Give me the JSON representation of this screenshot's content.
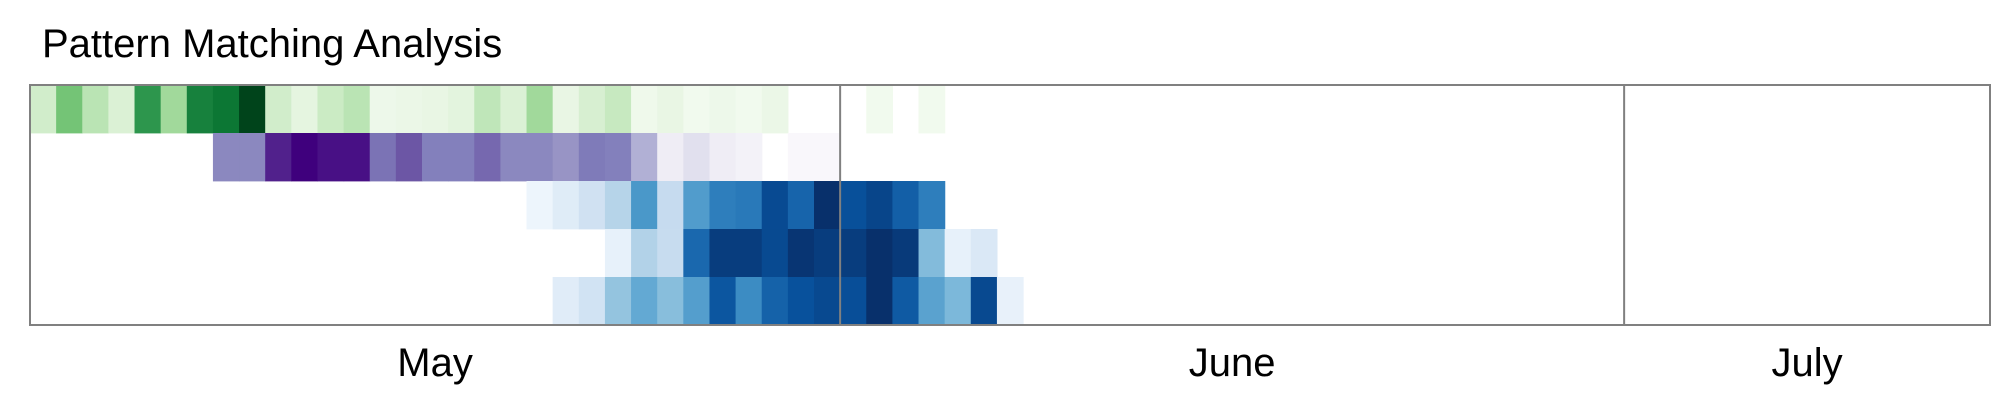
{
  "chart_data": {
    "type": "heatmap",
    "title": "Pattern Matching Analysis",
    "x_type": "date",
    "x_start": "2024-05-01",
    "x_end": "2024-07-15",
    "months": [
      {
        "label": "May",
        "start": "2024-05-01",
        "end": "2024-05-31"
      },
      {
        "label": "June",
        "start": "2024-06-01",
        "end": "2024-06-30"
      },
      {
        "label": "July",
        "start": "2024-07-01",
        "end": "2024-07-15"
      }
    ],
    "grid": false,
    "legend": "none",
    "series": [
      {
        "colorscale": "Greens",
        "start_date": "2024-05-01",
        "values": [
          0.25,
          0.6,
          0.35,
          0.2,
          0.85,
          0.45,
          0.95,
          1.0,
          1.2,
          0.25,
          0.15,
          0.28,
          0.35,
          0.08,
          0.1,
          0.12,
          0.16,
          0.33,
          0.2,
          0.45,
          0.12,
          0.22,
          0.3,
          0.07,
          0.12,
          0.05,
          0.08,
          0.05,
          0.1,
          0.0,
          0.0,
          0.0,
          0.05,
          0.0,
          0.05
        ]
      },
      {
        "colorscale": "Purples",
        "start_date": "2024-05-08",
        "values": [
          0.55,
          0.55,
          0.85,
          0.95,
          0.9,
          0.9,
          0.62,
          0.7,
          0.58,
          0.58,
          0.65,
          0.55,
          0.55,
          0.5,
          0.6,
          0.58,
          0.4,
          0.12,
          0.2,
          0.12,
          0.08,
          0.0,
          0.03,
          0.03
        ]
      },
      {
        "colorscale": "Blues",
        "start_date": "2024-05-20",
        "values": [
          0.05,
          0.12,
          0.2,
          0.3,
          0.6,
          0.25,
          0.58,
          0.7,
          0.72,
          0.9,
          0.8,
          1.0,
          0.88,
          0.92,
          0.82,
          0.7
        ]
      },
      {
        "colorscale": "Blues",
        "start_date": "2024-05-23",
        "values": [
          0.08,
          0.32,
          0.25,
          0.8,
          0.97,
          0.97,
          0.92,
          1.0,
          0.97,
          0.97,
          1.02,
          0.98,
          0.45,
          0.08,
          0.15
        ]
      },
      {
        "colorscale": "Blues",
        "start_date": "2024-05-21",
        "values": [
          0.12,
          0.2,
          0.42,
          0.55,
          0.45,
          0.6,
          0.9,
          0.68,
          0.85,
          0.92,
          0.95,
          0.93,
          1.05,
          0.88,
          0.58,
          0.48,
          0.95,
          0.08
        ]
      }
    ]
  }
}
